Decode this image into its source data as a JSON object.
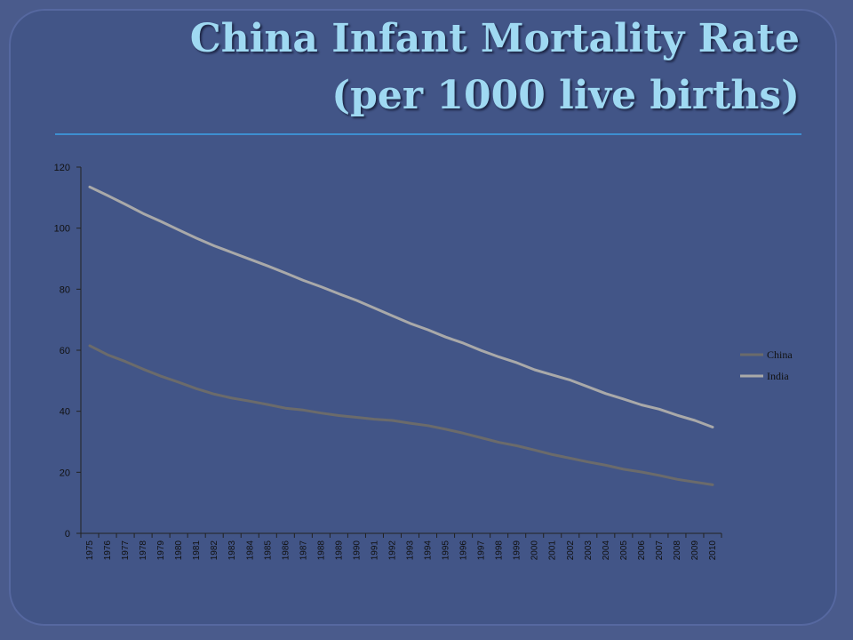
{
  "chart_data": {
    "type": "line",
    "title": "China Infant Mortality Rate (per 1000 live births)",
    "title_lines": [
      "China Infant Mortality Rate",
      "(per 1000 live births)"
    ],
    "categories": [
      "1975",
      "1976",
      "1977",
      "1978",
      "1979",
      "1980",
      "1981",
      "1982",
      "1983",
      "1984",
      "1985",
      "1986",
      "1987",
      "1988",
      "1989",
      "1990",
      "1991",
      "1992",
      "1993",
      "1994",
      "1995",
      "1996",
      "1997",
      "1998",
      "1999",
      "2000",
      "2001",
      "2002",
      "2003",
      "2004",
      "2005",
      "2006",
      "2007",
      "2008",
      "2009",
      "2010"
    ],
    "y_ticks": [
      0,
      20,
      40,
      60,
      80,
      100,
      120
    ],
    "ylim": [
      0,
      120
    ],
    "xlabel": "",
    "ylabel": "",
    "legend_position": "right",
    "grid": false,
    "series": [
      {
        "name": "China",
        "color": "#6b6b6b",
        "values": [
          61.5,
          58.5,
          56.3,
          53.8,
          51.5,
          49.5,
          47.4,
          45.6,
          44.3,
          43.3,
          42.2,
          41.0,
          40.4,
          39.4,
          38.6,
          38.0,
          37.4,
          37.0,
          36.1,
          35.3,
          34.1,
          32.8,
          31.3,
          29.8,
          28.7,
          27.3,
          25.8,
          24.6,
          23.4,
          22.3,
          21.0,
          20.1,
          19.0,
          17.7,
          16.8,
          15.9
        ]
      },
      {
        "name": "India",
        "color": "#a9a9a9",
        "values": [
          113.5,
          110.7,
          107.8,
          104.8,
          102.2,
          99.4,
          96.7,
          94.2,
          92.0,
          89.8,
          87.6,
          85.3,
          82.9,
          80.8,
          78.5,
          76.3,
          73.8,
          71.3,
          68.8,
          66.7,
          64.3,
          62.3,
          59.9,
          57.8,
          55.9,
          53.6,
          51.9,
          50.2,
          48.0,
          45.8,
          44.0,
          42.1,
          40.7,
          38.7,
          37.0,
          34.8
        ]
      }
    ]
  }
}
